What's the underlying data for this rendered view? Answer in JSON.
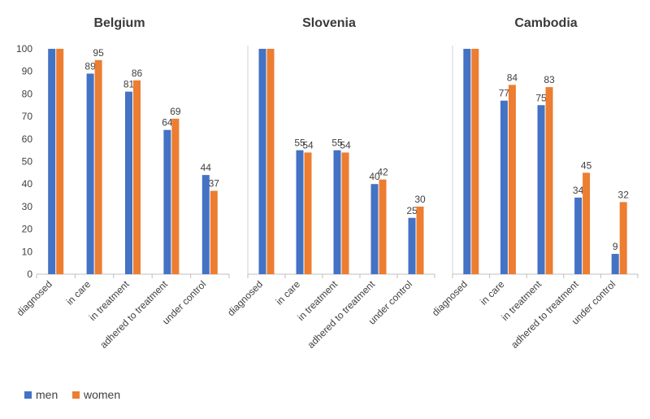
{
  "colors": {
    "men": "#4472C4",
    "women": "#ED7D31",
    "axis": "#BFBFBF",
    "panel_border": "#D0D0D0"
  },
  "legend": [
    {
      "key": "men",
      "label": "men"
    },
    {
      "key": "women",
      "label": "women"
    }
  ],
  "chart_data": [
    {
      "type": "bar",
      "title": "Belgium",
      "categories": [
        "diagnosed",
        "in care",
        "in treatment",
        "adhered to treatment",
        "under control"
      ],
      "ylim": [
        0,
        100
      ],
      "yticks": [
        0,
        10,
        20,
        30,
        40,
        50,
        60,
        70,
        80,
        90,
        100
      ],
      "series": [
        {
          "name": "men",
          "values": [
            100,
            89,
            81,
            64,
            44
          ],
          "labels": [
            null,
            "89",
            "81",
            "64",
            "44"
          ]
        },
        {
          "name": "women",
          "values": [
            100,
            95,
            86,
            69,
            37
          ],
          "labels": [
            null,
            "95",
            "86",
            "69",
            "37"
          ]
        }
      ]
    },
    {
      "type": "bar",
      "title": "Slovenia",
      "categories": [
        "diagnosed",
        "in care",
        "in treatment",
        "adhered to treatment",
        "under control"
      ],
      "ylim": [
        0,
        100
      ],
      "series": [
        {
          "name": "men",
          "values": [
            100,
            55,
            55,
            40,
            25
          ],
          "labels": [
            null,
            "55",
            "55",
            "40",
            "25"
          ]
        },
        {
          "name": "women",
          "values": [
            100,
            54,
            54,
            42,
            30
          ],
          "labels": [
            null,
            "54",
            "54",
            "42",
            "30"
          ]
        }
      ]
    },
    {
      "type": "bar",
      "title": "Cambodia",
      "categories": [
        "diagnosed",
        "in care",
        "in treatment",
        "adhered to treatment",
        "under control"
      ],
      "ylim": [
        0,
        100
      ],
      "series": [
        {
          "name": "men",
          "values": [
            100,
            77,
            75,
            34,
            9
          ],
          "labels": [
            null,
            "77",
            "75",
            "34",
            "9"
          ]
        },
        {
          "name": "women",
          "values": [
            100,
            84,
            83,
            45,
            32
          ],
          "labels": [
            null,
            "84",
            "83",
            "45",
            "32"
          ]
        }
      ]
    }
  ]
}
